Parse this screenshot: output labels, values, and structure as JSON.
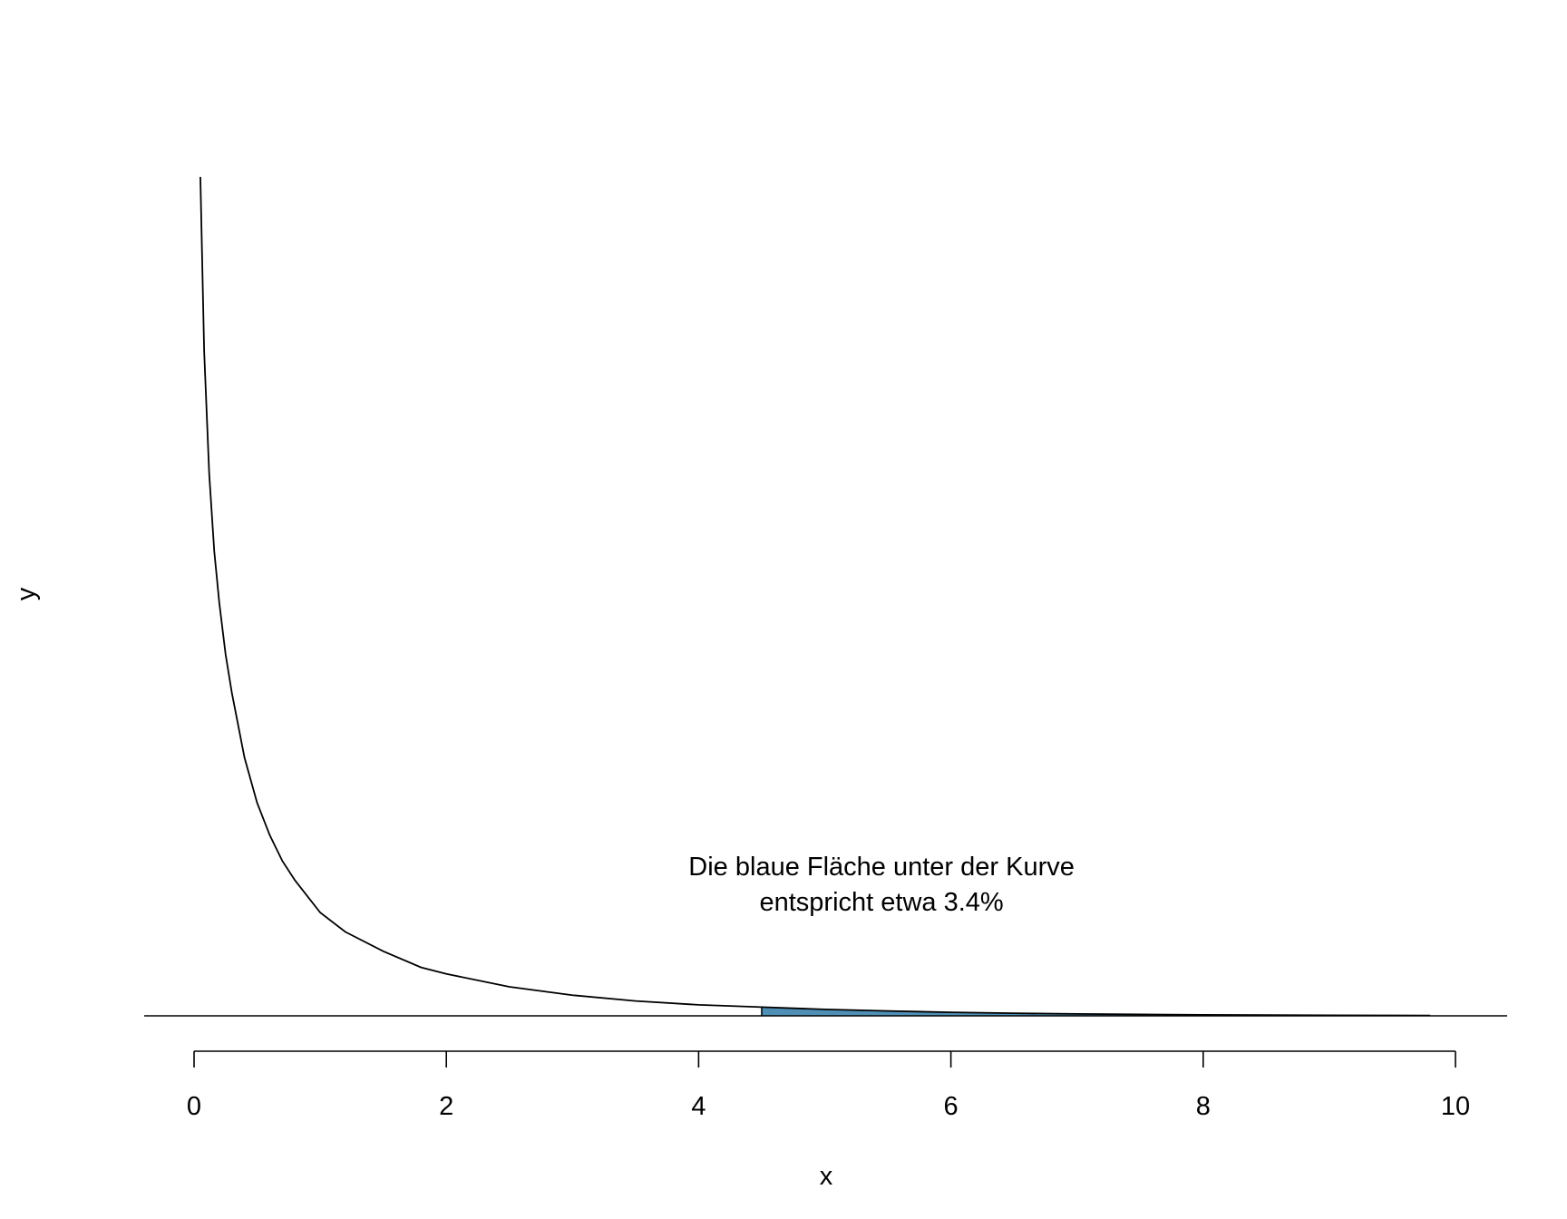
{
  "chart_data": {
    "type": "area",
    "title": "",
    "xlabel": "x",
    "ylabel": "y",
    "xlim": [
      0,
      10
    ],
    "ylim": [
      0,
      1.3
    ],
    "x_ticks": [
      "0",
      "2",
      "4",
      "6",
      "8",
      "10"
    ],
    "x_tick_values": [
      0,
      2,
      4,
      6,
      8,
      10
    ],
    "y_axis_shown": false,
    "grid": false,
    "curve": {
      "x": [
        0.05,
        0.08,
        0.12,
        0.16,
        0.2,
        0.25,
        0.3,
        0.4,
        0.5,
        0.6,
        0.7,
        0.8,
        1.0,
        1.2,
        1.5,
        1.8,
        2.0,
        2.5,
        3.0,
        3.5,
        4.0,
        4.5,
        5.0,
        5.5,
        6.0,
        6.5,
        7.0,
        7.5,
        8.0,
        8.5,
        9.0,
        9.5,
        9.8
      ],
      "y": [
        1.3,
        1.03,
        0.84,
        0.72,
        0.64,
        0.56,
        0.5,
        0.4,
        0.33,
        0.28,
        0.24,
        0.21,
        0.16,
        0.13,
        0.1,
        0.075,
        0.065,
        0.045,
        0.032,
        0.023,
        0.017,
        0.0135,
        0.01,
        0.0075,
        0.0055,
        0.004,
        0.003,
        0.0022,
        0.0016,
        0.0012,
        0.0009,
        0.0006,
        0.0005
      ]
    },
    "shaded_region": {
      "x_from": 4.5,
      "x_to": 9.8,
      "color": "#4f8fb5"
    },
    "baseline_y": 0,
    "annotation": {
      "line1": "Die blaue Fläche unter der Kurve",
      "line2": "entspricht etwa 3.4%",
      "x": 5.45,
      "y": 0.19
    },
    "colors": {
      "curve": "#000000",
      "fill": "#4f8fb5",
      "axis": "#000000"
    }
  }
}
